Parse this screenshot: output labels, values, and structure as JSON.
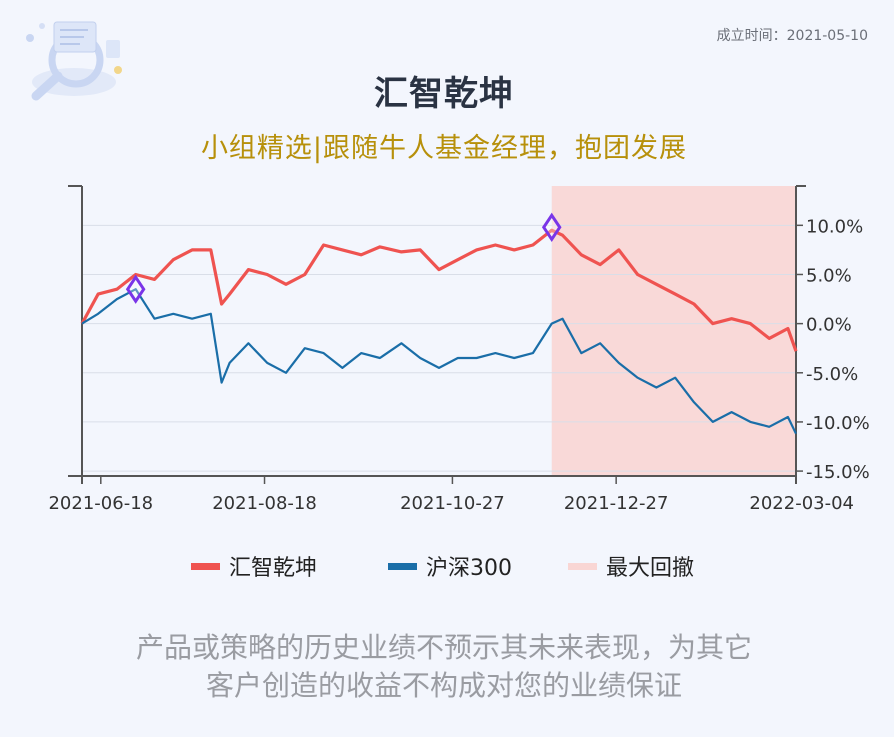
{
  "established_label": "成立时间：2021-05-10",
  "title": "汇智乾坤",
  "subtitle": "小组精选|跟随牛人基金经理，抱团发展",
  "legend": [
    {
      "label": "汇智乾坤",
      "color": "#ef5350"
    },
    {
      "label": "沪深300",
      "color": "#1a6ea8"
    },
    {
      "label": "最大回撤",
      "color": "#f9d6d4"
    }
  ],
  "disclaimer": [
    "产品或策略的历史业绩不预示其未来表现，为其它",
    "客户创造的收益不构成对您的业绩保证"
  ],
  "chart_data": {
    "type": "line",
    "x_tick_labels": [
      "2021-06-18",
      "2021-08-18",
      "2021-10-27",
      "2021-12-27",
      "2022-03-04"
    ],
    "y_tick_labels": [
      "10.0%",
      "5.0%",
      "0.0%",
      "-5.0%",
      "-10.0%",
      "-15.0%"
    ],
    "ylim": [
      -15.5,
      14
    ],
    "y_ticks": [
      10,
      5,
      0,
      -5,
      -10,
      -15
    ],
    "x": [
      "2021-06-11",
      "2021-06-17",
      "2021-06-24",
      "2021-07-01",
      "2021-07-08",
      "2021-07-15",
      "2021-07-22",
      "2021-07-29",
      "2021-08-02",
      "2021-08-05",
      "2021-08-12",
      "2021-08-19",
      "2021-08-26",
      "2021-09-02",
      "2021-09-09",
      "2021-09-16",
      "2021-09-23",
      "2021-09-30",
      "2021-10-08",
      "2021-10-15",
      "2021-10-22",
      "2021-10-29",
      "2021-11-05",
      "2021-11-12",
      "2021-11-19",
      "2021-11-26",
      "2021-12-03",
      "2021-12-07",
      "2021-12-14",
      "2021-12-21",
      "2021-12-28",
      "2022-01-04",
      "2022-01-11",
      "2022-01-18",
      "2022-01-25",
      "2022-02-01",
      "2022-02-08",
      "2022-02-15",
      "2022-02-22",
      "2022-03-01",
      "2022-03-04"
    ],
    "series": [
      {
        "name": "汇智乾坤",
        "color": "#ef5350",
        "values": [
          0,
          3.0,
          3.5,
          5.0,
          4.5,
          6.5,
          7.5,
          7.5,
          2.0,
          3.0,
          5.5,
          5.0,
          4.0,
          5.0,
          8.0,
          7.5,
          7.0,
          7.8,
          7.3,
          7.5,
          5.5,
          6.5,
          7.5,
          8.0,
          7.5,
          8.0,
          9.5,
          9.0,
          7.0,
          6.0,
          7.5,
          5.0,
          4.0,
          3.0,
          2.0,
          0.0,
          0.5,
          0.0,
          -1.5,
          -0.5,
          -2.8
        ]
      },
      {
        "name": "沪深300",
        "color": "#1a6ea8",
        "values": [
          0,
          1.0,
          2.5,
          3.5,
          0.5,
          1.0,
          0.5,
          1.0,
          -6.0,
          -4.0,
          -2.0,
          -4.0,
          -5.0,
          -2.5,
          -3.0,
          -4.5,
          -3.0,
          -3.5,
          -2.0,
          -3.5,
          -4.5,
          -3.5,
          -3.5,
          -3.0,
          -3.5,
          -3.0,
          0.0,
          0.5,
          -3.0,
          -2.0,
          -4.0,
          -5.5,
          -6.5,
          -5.5,
          -8.0,
          -10.0,
          -9.0,
          -10.0,
          -10.5,
          -9.5,
          -11.2
        ]
      }
    ],
    "drawdown_marks": [
      {
        "date": "2021-07-01",
        "value": 3.5
      },
      {
        "date": "2021-12-03",
        "value": 9.8
      }
    ],
    "drawdown_range": [
      "2021-12-03",
      "2022-03-04"
    ],
    "grid": true
  }
}
